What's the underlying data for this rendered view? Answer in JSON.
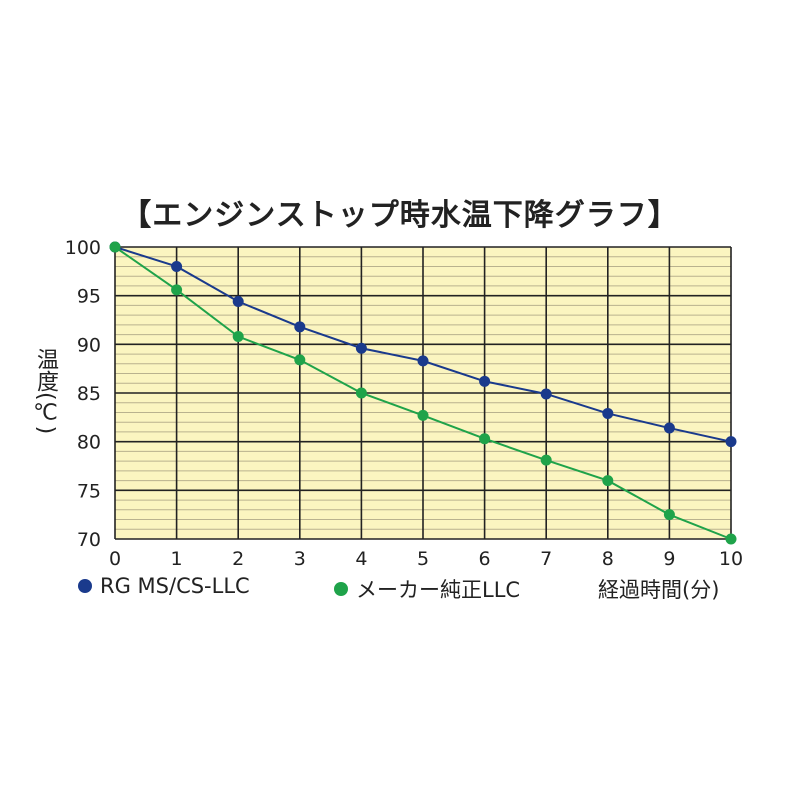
{
  "chart_data": {
    "type": "line",
    "title": "【エンジンストップ時水温下降グラフ】",
    "xlabel": "経過時間(分)",
    "ylabel": "温度(℃)",
    "x": [
      0,
      1,
      2,
      3,
      4,
      5,
      6,
      7,
      8,
      9,
      10
    ],
    "xlim": [
      0,
      10
    ],
    "ylim": [
      70,
      100
    ],
    "yticks": [
      70,
      75,
      80,
      85,
      90,
      95,
      100
    ],
    "grid": true,
    "legend_position": "bottom",
    "background_color": "#fbf5c0",
    "series": [
      {
        "name": "RG MS/CS-LLC",
        "color": "#1a3a8c",
        "values": [
          100,
          98,
          94.4,
          91.8,
          89.6,
          88.3,
          86.2,
          84.9,
          82.9,
          81.4,
          80
        ]
      },
      {
        "name": "メーカー純正LLC",
        "color": "#1fa34a",
        "values": [
          100,
          95.6,
          90.8,
          88.4,
          85,
          82.7,
          80.3,
          78.1,
          76,
          72.5,
          70
        ]
      }
    ]
  }
}
